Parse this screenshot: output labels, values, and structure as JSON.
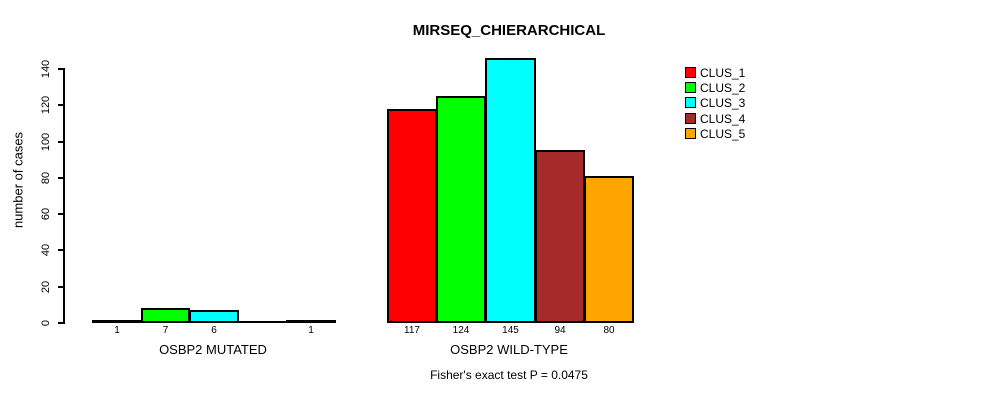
{
  "chart_data": {
    "type": "bar",
    "title": "MIRSEQ_CHIERARCHICAL",
    "ylabel": "number of cases",
    "xlabel": "",
    "ylim": [
      0,
      145
    ],
    "y_ticks": [
      0,
      20,
      40,
      60,
      80,
      100,
      120,
      140
    ],
    "grid": false,
    "legend_position": "topright",
    "categories": [
      "OSBP2 MUTATED",
      "OSBP2 WILD-TYPE"
    ],
    "series": [
      {
        "name": "CLUS_1",
        "color": "#FF0000",
        "values": [
          1,
          117
        ]
      },
      {
        "name": "CLUS_2",
        "color": "#00FF00",
        "values": [
          7,
          124
        ]
      },
      {
        "name": "CLUS_3",
        "color": "#00FFFF",
        "values": [
          6,
          145
        ]
      },
      {
        "name": "CLUS_4",
        "color": "#A52A2A",
        "values": [
          0,
          94
        ]
      },
      {
        "name": "CLUS_5",
        "color": "#FFA500",
        "values": [
          1,
          80
        ]
      }
    ],
    "bar_labels": [
      [
        "1",
        "7",
        "6",
        "",
        "1"
      ],
      [
        "117",
        "124",
        "145",
        "94",
        "80"
      ]
    ],
    "annotation": "Fisher's exact test P = 0.0475",
    "axis_color": "#000000",
    "bar_border_color": "#000000",
    "background_color": "#FFFFFF"
  }
}
